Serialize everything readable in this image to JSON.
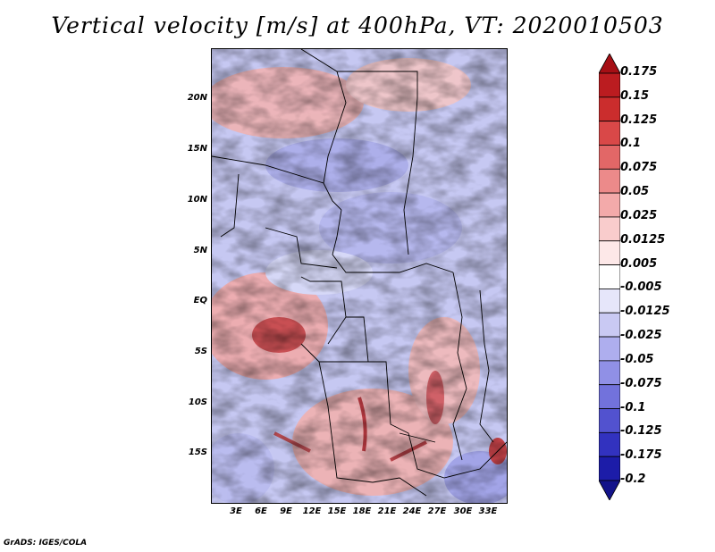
{
  "title": "Vertical velocity [m/s] at 400hPa, VT: 2020010503",
  "lat_ticks": [
    "20N",
    "15N",
    "10N",
    "5N",
    "EQ",
    "5S",
    "10S",
    "15S"
  ],
  "lon_ticks": [
    "3E",
    "6E",
    "9E",
    "12E",
    "15E",
    "18E",
    "21E",
    "24E",
    "27E",
    "30E",
    "33E"
  ],
  "colorbar": {
    "labels": [
      "0.175",
      "0.15",
      "0.125",
      "0.1",
      "0.075",
      "0.05",
      "0.025",
      "0.0125",
      "0.005",
      "-0.005",
      "-0.0125",
      "-0.025",
      "-0.05",
      "-0.075",
      "-0.1",
      "-0.125",
      "-0.175",
      "-0.2"
    ],
    "colors": [
      "#a50f15",
      "#bb1c20",
      "#cb2d2d",
      "#d94848",
      "#e26767",
      "#ec8a8a",
      "#f3aaaa",
      "#f9cccc",
      "#fde8e8",
      "#ffffff",
      "#e6e6fa",
      "#c9c9f3",
      "#aeaeee",
      "#9090e6",
      "#7272dc",
      "#5252cf",
      "#3232bf",
      "#1c1ca8",
      "#13138a"
    ]
  },
  "credit": "GrADS: IGES/COLA"
}
